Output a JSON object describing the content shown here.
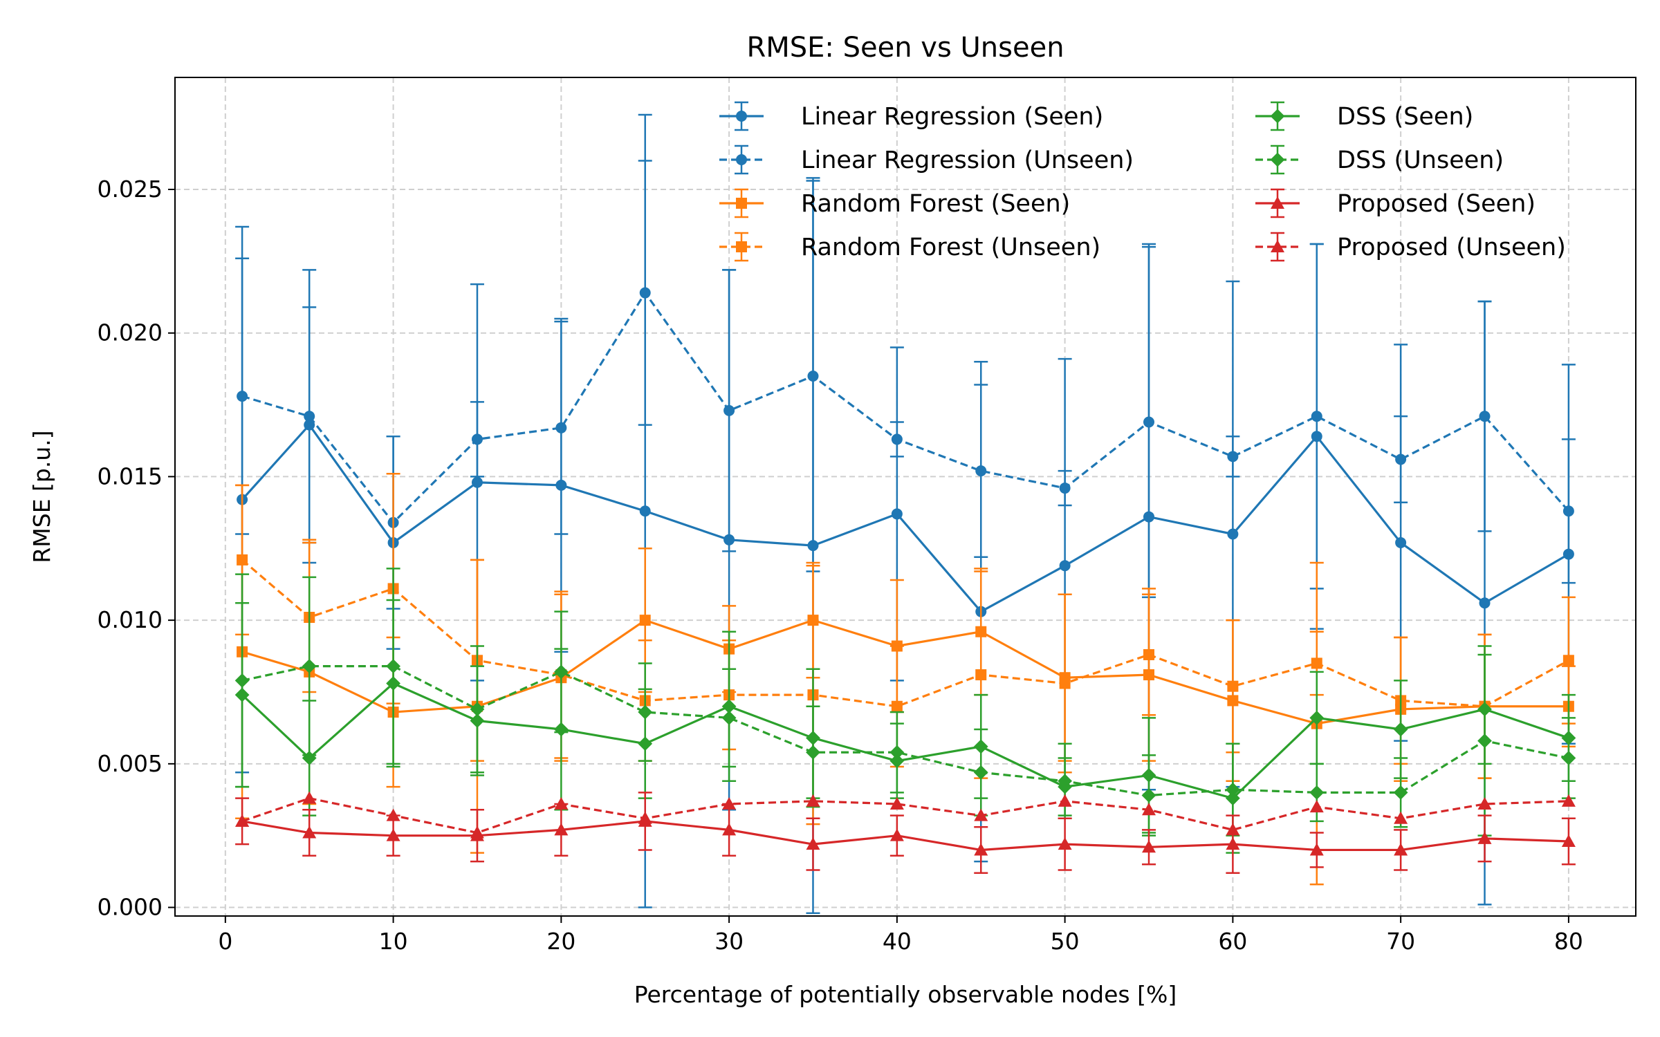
{
  "chart_data": {
    "type": "line",
    "title": "RMSE: Seen vs Unseen",
    "xlabel": "Percentage of potentially observable nodes [%]",
    "ylabel": "RMSE [p.u.]",
    "xlim": [
      -3,
      84
    ],
    "ylim": [
      -0.0003,
      0.0289
    ],
    "xticks": [
      0,
      10,
      20,
      30,
      40,
      50,
      60,
      70,
      80
    ],
    "xtick_labels": [
      "0",
      "10",
      "20",
      "30",
      "40",
      "50",
      "60",
      "70",
      "80"
    ],
    "yticks": [
      0,
      0.005,
      0.01,
      0.015,
      0.02,
      0.025
    ],
    "ytick_labels": [
      "0.000",
      "0.005",
      "0.010",
      "0.015",
      "0.020",
      "0.025"
    ],
    "grid": true,
    "legend_position": "top-right",
    "x": [
      1,
      5,
      10,
      15,
      20,
      25,
      30,
      35,
      40,
      45,
      50,
      55,
      60,
      65,
      70,
      75,
      80
    ],
    "series": [
      {
        "name": "Linear Regression (Seen)",
        "color": "#1f77b4",
        "style": "solid",
        "marker": "circle",
        "values": [
          0.0142,
          0.0168,
          0.0127,
          0.0148,
          0.0147,
          0.0138,
          0.0128,
          0.0126,
          0.0137,
          0.0103,
          0.0119,
          0.0136,
          0.013,
          0.0164,
          0.0127,
          0.0106,
          0.0123
        ],
        "errors": [
          0.0095,
          0.0041,
          0.0037,
          0.0069,
          0.0058,
          0.0138,
          0.0094,
          0.0128,
          0.0058,
          0.0087,
          0.0072,
          0.0095,
          0.0088,
          0.0067,
          0.0069,
          0.0105,
          0.0066
        ]
      },
      {
        "name": "Linear Regression (Unseen)",
        "color": "#1f77b4",
        "style": "dashed",
        "marker": "circle",
        "values": [
          0.0178,
          0.0171,
          0.0134,
          0.0163,
          0.0167,
          0.0214,
          0.0173,
          0.0185,
          0.0163,
          0.0152,
          0.0146,
          0.0169,
          0.0157,
          0.0171,
          0.0156,
          0.0171,
          0.0138
        ],
        "errors": [
          0.0048,
          0.0051,
          0.003,
          0.0013,
          0.0037,
          0.0046,
          0.0049,
          0.0068,
          0.0006,
          0.003,
          0.0006,
          0.0061,
          0.0007,
          0.006,
          0.0015,
          0.004,
          0.0025
        ]
      },
      {
        "name": "Random Forest (Seen)",
        "color": "#ff7f0e",
        "style": "solid",
        "marker": "square",
        "values": [
          0.0089,
          0.0082,
          0.0068,
          0.007,
          0.008,
          0.01,
          0.009,
          0.01,
          0.0091,
          0.0096,
          0.008,
          0.0081,
          0.0072,
          0.0064,
          0.0069,
          0.007,
          0.007
        ],
        "errors": [
          0.0058,
          0.0046,
          0.0026,
          0.0051,
          0.0029,
          0.0025,
          0.0015,
          0.002,
          0.0023,
          0.0022,
          0.0029,
          0.003,
          0.0028,
          0.0056,
          0.0025,
          0.0025,
          0.0014
        ]
      },
      {
        "name": "Random Forest (Unseen)",
        "color": "#ff7f0e",
        "style": "dashed",
        "marker": "square",
        "values": [
          0.0121,
          0.0101,
          0.0111,
          0.0086,
          0.0081,
          0.0072,
          0.0074,
          0.0074,
          0.007,
          0.0081,
          0.0078,
          0.0088,
          0.0077,
          0.0085,
          0.0072,
          0.007,
          0.0086
        ],
        "errors": [
          0.0026,
          0.0026,
          0.004,
          0.0035,
          0.0029,
          0.0021,
          0.0019,
          0.0045,
          0.0021,
          0.0036,
          0.0031,
          0.0021,
          0.0023,
          0.0011,
          0.0022,
          0.0025,
          0.0022
        ]
      },
      {
        "name": "DSS (Seen)",
        "color": "#2ca02c",
        "style": "solid",
        "marker": "diamond",
        "values": [
          0.0074,
          0.0052,
          0.0078,
          0.0065,
          0.0062,
          0.0057,
          0.007,
          0.0059,
          0.0051,
          0.0056,
          0.0042,
          0.0046,
          0.0038,
          0.0066,
          0.0062,
          0.0069,
          0.0059
        ],
        "errors": [
          0.0032,
          0.002,
          0.0029,
          0.0019,
          0.0028,
          0.0019,
          0.0026,
          0.0024,
          0.0013,
          0.0018,
          0.001,
          0.002,
          0.0019,
          0.0016,
          0.0017,
          0.0019,
          0.0015
        ]
      },
      {
        "name": "DSS (Unseen)",
        "color": "#2ca02c",
        "style": "dashed",
        "marker": "diamond",
        "values": [
          0.0079,
          0.0084,
          0.0084,
          0.0069,
          0.0082,
          0.0068,
          0.0066,
          0.0054,
          0.0054,
          0.0047,
          0.0044,
          0.0039,
          0.0041,
          0.004,
          0.004,
          0.0058,
          0.0052
        ],
        "errors": [
          0.0037,
          0.0031,
          0.0034,
          0.0022,
          0.0021,
          0.0017,
          0.0017,
          0.0016,
          0.0014,
          0.0015,
          0.0013,
          0.0014,
          0.0016,
          0.001,
          0.0012,
          0.0033,
          0.0014
        ]
      },
      {
        "name": "Proposed (Seen)",
        "color": "#d62728",
        "style": "solid",
        "marker": "triangle",
        "values": [
          0.003,
          0.0026,
          0.0025,
          0.0025,
          0.0027,
          0.003,
          0.0027,
          0.0022,
          0.0025,
          0.002,
          0.0022,
          0.0021,
          0.0022,
          0.002,
          0.002,
          0.0024,
          0.0023
        ],
        "errors": [
          0.0008,
          0.0008,
          0.0007,
          0.0009,
          0.0009,
          0.001,
          0.0009,
          0.0009,
          0.0007,
          0.0008,
          0.0009,
          0.0006,
          0.001,
          0.0006,
          0.0007,
          0.0008,
          0.0008
        ]
      },
      {
        "name": "Proposed (Unseen)",
        "color": "#d62728",
        "style": "dashed",
        "marker": "triangle",
        "values": [
          0.003,
          0.0038,
          0.0032,
          0.0026,
          0.0036,
          0.0031,
          0.0036,
          0.0037,
          0.0036,
          0.0032,
          0.0037,
          0.0034,
          0.0027,
          0.0035,
          0.0031,
          0.0036,
          0.0037
        ]
      }
    ]
  }
}
